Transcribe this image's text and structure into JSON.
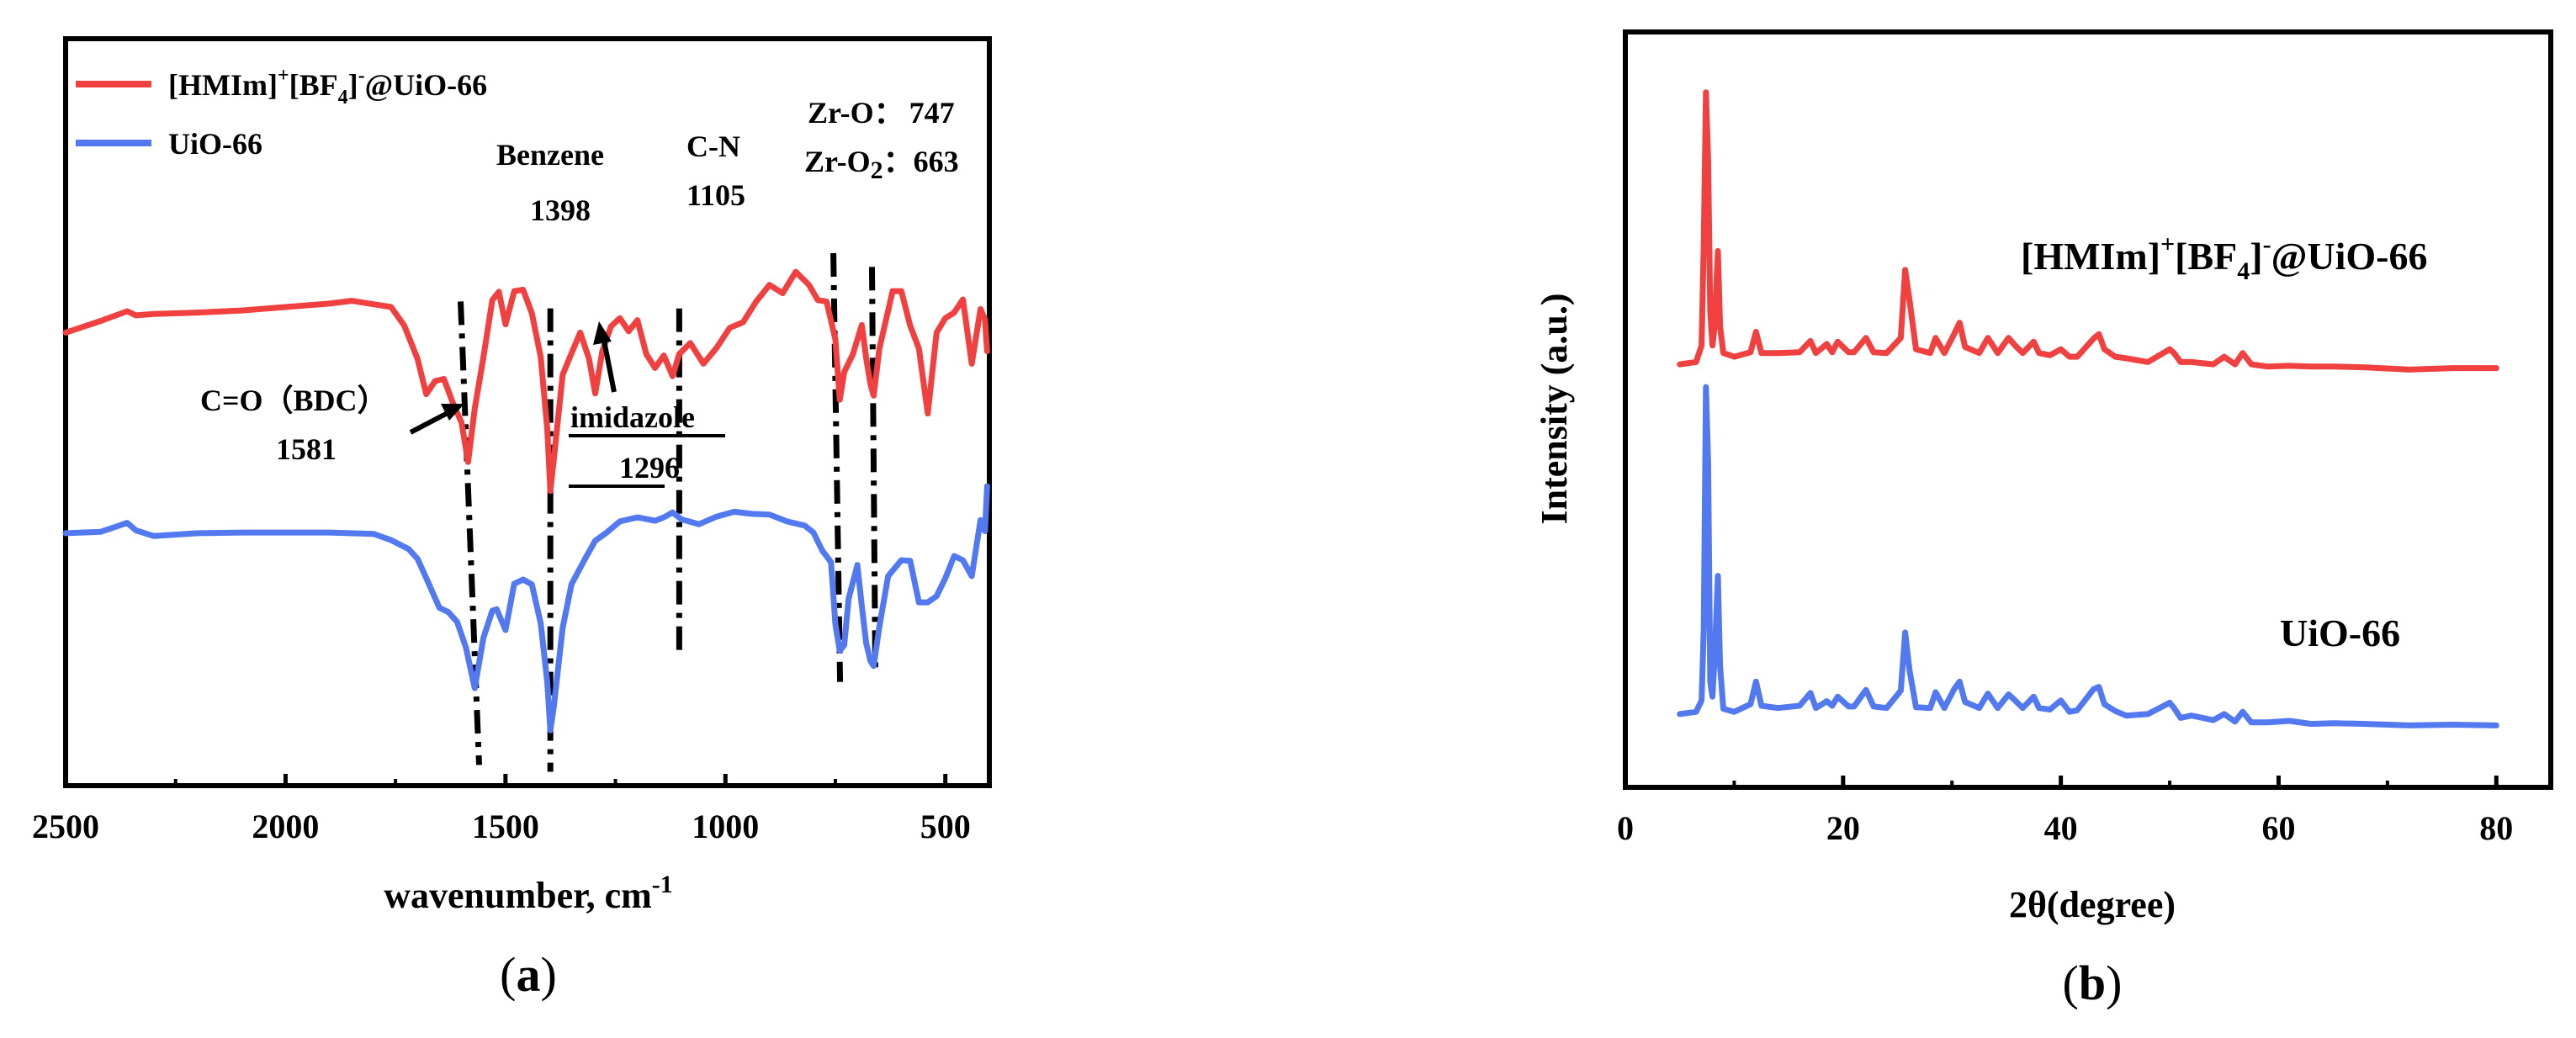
{
  "colors": {
    "red": "#f04040",
    "blue": "#5279f0",
    "axis": "#000000"
  },
  "panels": {
    "a": {
      "label": "(a)",
      "label_letter": "a"
    },
    "b": {
      "label": "(b)",
      "label_letter": "b"
    }
  },
  "chart_data": [
    {
      "type": "line",
      "id": "ftir",
      "title": "",
      "xlabel": "wavenumber, cm",
      "xlabel_superscript": "-1",
      "ylabel": "",
      "xlim": [
        2500,
        400
      ],
      "x_reversed": true,
      "xticks": [
        2500,
        2000,
        1500,
        1000,
        500
      ],
      "xtick_labels": [
        "2500",
        "2000",
        "1500",
        "1000",
        "500"
      ],
      "y_ticks_shown": false,
      "ylim": [
        -5,
        103
      ],
      "legend": {
        "placement": "top-left",
        "entries": [
          {
            "name": "[HMIm]",
            "sup1": "+",
            "mid": "[BF",
            "sub": "4",
            "end": "]",
            "sup2": "-",
            "tail": "@UiO-66",
            "color": "red"
          },
          {
            "name": "UiO-66",
            "color": "blue"
          }
        ]
      },
      "series": [
        {
          "name": "[HMIm]+[BF4]-@UiO-66",
          "color": "red",
          "x": [
            2500,
            2420,
            2360,
            2340,
            2300,
            2200,
            2100,
            2000,
            1900,
            1850,
            1800,
            1760,
            1730,
            1700,
            1680,
            1660,
            1640,
            1620,
            1600,
            1585,
            1570,
            1550,
            1530,
            1515,
            1500,
            1480,
            1460,
            1440,
            1420,
            1405,
            1398,
            1390,
            1370,
            1350,
            1330,
            1310,
            1296,
            1280,
            1260,
            1240,
            1220,
            1200,
            1180,
            1160,
            1140,
            1120,
            1105,
            1080,
            1050,
            1020,
            990,
            960,
            930,
            900,
            870,
            840,
            810,
            790,
            770,
            750,
            740,
            730,
            710,
            690,
            680,
            670,
            663,
            650,
            620,
            600,
            580,
            560,
            540,
            520,
            500,
            480,
            460,
            440,
            420,
            410,
            405
          ],
          "y": [
            60.5,
            62.2,
            63.6,
            63.0,
            63.2,
            63.4,
            63.7,
            64.2,
            64.7,
            65.1,
            64.6,
            64.2,
            61.5,
            56.7,
            51.6,
            53.5,
            53.8,
            50.4,
            47.5,
            41.8,
            49.5,
            57.0,
            65.2,
            66.4,
            61.7,
            66.5,
            66.7,
            63.3,
            57.0,
            46.6,
            37.6,
            42.3,
            54.4,
            57.5,
            60.5,
            56.7,
            51.7,
            57.8,
            61.4,
            62.6,
            60.7,
            62.3,
            57.4,
            55.4,
            57.2,
            54.2,
            57.4,
            59.0,
            56.0,
            58.3,
            61.2,
            62.0,
            65.0,
            67.4,
            66.2,
            69.3,
            67.4,
            65.2,
            65.0,
            59.5,
            50.8,
            54.8,
            57.4,
            61.6,
            56.8,
            53.0,
            51.4,
            58.2,
            66.5,
            66.5,
            61.5,
            58.2,
            48.8,
            60.5,
            62.6,
            63.4,
            65.3,
            56.0,
            63.9,
            62.4,
            57.8
          ]
        },
        {
          "name": "UiO-66",
          "color": "blue",
          "x": [
            2500,
            2420,
            2360,
            2340,
            2300,
            2200,
            2100,
            2000,
            1900,
            1800,
            1760,
            1720,
            1700,
            1680,
            1650,
            1630,
            1610,
            1590,
            1570,
            1550,
            1530,
            1520,
            1500,
            1480,
            1460,
            1440,
            1420,
            1405,
            1398,
            1390,
            1370,
            1350,
            1320,
            1296,
            1270,
            1240,
            1200,
            1160,
            1140,
            1120,
            1100,
            1060,
            1020,
            980,
            940,
            900,
            860,
            820,
            800,
            780,
            760,
            750,
            740,
            730,
            720,
            700,
            690,
            680,
            670,
            663,
            650,
            630,
            600,
            580,
            560,
            540,
            520,
            500,
            480,
            460,
            440,
            420,
            410,
            405
          ],
          "y": [
            31.5,
            31.7,
            33.0,
            31.9,
            31.1,
            31.5,
            31.6,
            31.6,
            31.6,
            31.4,
            30.5,
            29.2,
            27.8,
            25.0,
            20.7,
            20.1,
            18.7,
            15.0,
            9.1,
            16.4,
            20.3,
            20.5,
            17.5,
            24.2,
            24.8,
            24.1,
            18.5,
            10.0,
            3.0,
            6.5,
            17.8,
            24.1,
            27.7,
            30.4,
            31.6,
            33.2,
            33.8,
            33.3,
            33.8,
            34.5,
            33.5,
            32.8,
            33.9,
            34.6,
            34.3,
            34.2,
            33.2,
            32.6,
            31.6,
            29.0,
            27.3,
            18.3,
            14.5,
            15.3,
            22.0,
            26.9,
            21.0,
            15.6,
            13.0,
            12.3,
            18.0,
            25.3,
            27.6,
            27.5,
            21.5,
            21.5,
            22.4,
            25.0,
            28.2,
            27.6,
            25.3,
            33.4,
            31.8,
            38.3
          ]
        }
      ],
      "annotations": [
        {
          "id": "bdc",
          "label": "C=O（BDC）",
          "value": "1581",
          "peak_x": 1581,
          "arrow": true
        },
        {
          "id": "benzene",
          "label": "Benzene",
          "value": "1398",
          "peak_x": 1398
        },
        {
          "id": "imidazole",
          "label": "imidazole",
          "value": "1296",
          "peak_x": 1296,
          "arrow": true,
          "underlined": true
        },
        {
          "id": "cn",
          "label": "C-N",
          "value": "1105",
          "peak_x": 1105
        },
        {
          "id": "zro",
          "label": "Zr-O：",
          "value": "747",
          "peak_x": 747
        },
        {
          "id": "zro2",
          "label": "Zr-O",
          "label_sub": "2",
          "label_tail": "：",
          "value": "663",
          "peak_x": 663
        }
      ]
    },
    {
      "type": "line",
      "id": "xrd",
      "title": "",
      "xlabel": "2θ(degree)",
      "ylabel": "Intensity (a.u.)",
      "xlim": [
        0,
        85
      ],
      "xticks": [
        0,
        20,
        40,
        60,
        80
      ],
      "xtick_labels": [
        "0",
        "20",
        "40",
        "60",
        "80"
      ],
      "y_ticks_shown": false,
      "ylim": [
        0,
        100
      ],
      "series": [
        {
          "name": "[HMIm]+[BF4]-@UiO-66",
          "label_parts": {
            "a": "[HMIm]",
            "sup1": "+",
            "b": "[BF",
            "sub": "4",
            "c": "]",
            "sup2": "-",
            "d": "@UiO-66"
          },
          "color": "red",
          "x": [
            5,
            6.5,
            7.0,
            7.2,
            7.4,
            7.6,
            7.8,
            8.0,
            8.2,
            8.5,
            8.7,
            9.0,
            10,
            11.5,
            12.0,
            12.5,
            14,
            16,
            17.0,
            17.5,
            18.5,
            19.0,
            19.5,
            20.5,
            21,
            22.1,
            22.8,
            24,
            25.3,
            25.7,
            26.1,
            26.7,
            28,
            28.5,
            29.3,
            30.2,
            30.7,
            31.2,
            32.5,
            33.3,
            34.2,
            35.2,
            35.8,
            36.5,
            37.5,
            38.0,
            39,
            40.0,
            40.8,
            41.5,
            43.0,
            43.5,
            44.0,
            45.0,
            46,
            48,
            50.0,
            50.4,
            51.0,
            52,
            54,
            55.0,
            56,
            56.7,
            57.5,
            59,
            61,
            63,
            65,
            68,
            72,
            76,
            80
          ],
          "y": [
            56.0,
            56.3,
            58.5,
            72,
            92,
            83,
            63,
            58.5,
            61,
            71,
            61,
            57.5,
            57.0,
            57.6,
            60.3,
            57.5,
            57.5,
            57.6,
            59.1,
            57.5,
            58.7,
            57.6,
            59.0,
            57.6,
            57.6,
            59.5,
            57.6,
            57.5,
            59.5,
            68.5,
            64.5,
            58.0,
            57.5,
            59.5,
            57.5,
            60.0,
            61.5,
            58.3,
            57.5,
            59.5,
            57.5,
            59.5,
            58.5,
            57.5,
            59.0,
            57.5,
            57.2,
            58.0,
            57.0,
            57.0,
            59.4,
            60.0,
            58.0,
            57.0,
            56.8,
            56.3,
            58.0,
            57.5,
            56.3,
            56.3,
            56.0,
            57.0,
            56.0,
            57.5,
            56.0,
            55.7,
            55.8,
            55.7,
            55.7,
            55.6,
            55.3,
            55.5,
            55.5
          ]
        },
        {
          "name": "UiO-66",
          "color": "blue",
          "x": [
            5,
            6.5,
            7.0,
            7.2,
            7.4,
            7.6,
            7.8,
            8.0,
            8.2,
            8.5,
            8.7,
            9.0,
            10,
            11.5,
            12.0,
            12.5,
            14,
            16,
            17.0,
            17.5,
            18.5,
            19.0,
            19.5,
            20.5,
            21,
            22.1,
            22.8,
            24,
            25.3,
            25.7,
            26.1,
            26.7,
            28,
            28.5,
            29.3,
            30.2,
            30.7,
            31.2,
            32.5,
            33.3,
            34.2,
            35.2,
            35.8,
            36.5,
            37.5,
            38.0,
            39,
            40.0,
            40.8,
            41.5,
            43.0,
            43.5,
            44.0,
            45.0,
            46,
            48,
            50.0,
            50.4,
            51.0,
            52,
            54,
            55.0,
            56,
            56.7,
            57.5,
            59,
            61,
            63,
            65,
            68,
            72,
            76,
            80
          ],
          "y": [
            9.7,
            10.0,
            11.5,
            21,
            53,
            43,
            14,
            12.0,
            17,
            28,
            16,
            10.4,
            10.0,
            11.0,
            14.0,
            10.8,
            10.5,
            10.8,
            12.5,
            10.5,
            11.4,
            10.8,
            12.0,
            10.7,
            10.7,
            12.9,
            10.7,
            10.5,
            12.8,
            20.5,
            15.5,
            10.6,
            10.5,
            12.6,
            10.5,
            13.0,
            14.0,
            11.3,
            10.5,
            12.4,
            10.5,
            12.3,
            11.5,
            10.5,
            12.0,
            10.5,
            10.3,
            11.5,
            10.0,
            10.2,
            13.0,
            13.3,
            11.0,
            10.1,
            9.5,
            9.7,
            11.2,
            10.5,
            9.2,
            9.5,
            8.9,
            9.7,
            8.7,
            10.0,
            8.6,
            8.6,
            8.8,
            8.4,
            8.5,
            8.4,
            8.2,
            8.3,
            8.2
          ]
        }
      ],
      "annotations": [
        {
          "id": "xrd-label-top",
          "series": 0
        },
        {
          "id": "xrd-label-bottom",
          "text": "UiO-66",
          "series": 1
        }
      ]
    }
  ]
}
